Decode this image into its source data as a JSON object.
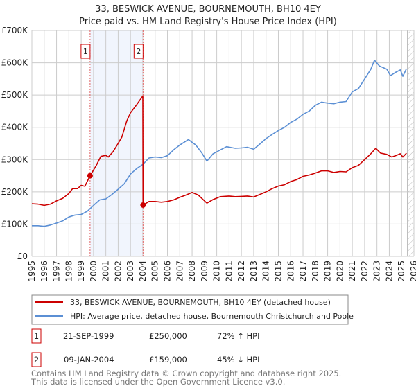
{
  "chart_data": {
    "type": "line",
    "title": "33, BESWICK AVENUE, BOURNEMOUTH, BH10 4EY",
    "subtitle": "Price paid vs. HM Land Registry's House Price Index (HPI)",
    "xlabel": "",
    "ylabel": "",
    "xlim": [
      1995,
      2026
    ],
    "ylim": [
      0,
      700000
    ],
    "y_ticks": [
      {
        "v": 0,
        "label": "£0"
      },
      {
        "v": 100000,
        "label": "£100K"
      },
      {
        "v": 200000,
        "label": "£200K"
      },
      {
        "v": 300000,
        "label": "£300K"
      },
      {
        "v": 400000,
        "label": "£400K"
      },
      {
        "v": 500000,
        "label": "£500K"
      },
      {
        "v": 600000,
        "label": "£600K"
      },
      {
        "v": 700000,
        "label": "£700K"
      }
    ],
    "x_ticks": [
      "1995",
      "1996",
      "1997",
      "1998",
      "1999",
      "2000",
      "2001",
      "2002",
      "2003",
      "2004",
      "2005",
      "2006",
      "2007",
      "2008",
      "2009",
      "2010",
      "2011",
      "2012",
      "2013",
      "2014",
      "2015",
      "2016",
      "2017",
      "2018",
      "2019",
      "2020",
      "2021",
      "2022",
      "2023",
      "2024",
      "2025",
      "2026"
    ],
    "grid": true,
    "shaded_period": [
      1999.72,
      2004.02
    ],
    "forecast_hatch_from": 2025.5,
    "series": [
      {
        "name": "33, BESWICK AVENUE, BOURNEMOUTH, BH10 4EY (detached house)",
        "color": "#cc0000",
        "points": [
          [
            1995,
            163000
          ],
          [
            1995.5,
            162000
          ],
          [
            1996,
            158000
          ],
          [
            1996.5,
            162000
          ],
          [
            1997,
            172000
          ],
          [
            1997.5,
            180000
          ],
          [
            1998,
            195000
          ],
          [
            1998.3,
            210000
          ],
          [
            1998.7,
            210000
          ],
          [
            1999,
            220000
          ],
          [
            1999.3,
            217000
          ],
          [
            1999.72,
            250000
          ],
          [
            2000.2,
            280000
          ],
          [
            2000.6,
            310000
          ],
          [
            2001,
            313000
          ],
          [
            2001.2,
            308000
          ],
          [
            2001.6,
            325000
          ],
          [
            2002,
            350000
          ],
          [
            2002.3,
            370000
          ],
          [
            2002.7,
            420000
          ],
          [
            2003,
            445000
          ],
          [
            2003.5,
            470000
          ],
          [
            2004.0,
            497000
          ],
          [
            2004.02,
            159000
          ],
          [
            2004.5,
            170000
          ],
          [
            2005,
            170000
          ],
          [
            2005.5,
            168000
          ],
          [
            2006,
            170000
          ],
          [
            2006.5,
            175000
          ],
          [
            2007,
            183000
          ],
          [
            2007.5,
            190000
          ],
          [
            2008,
            198000
          ],
          [
            2008.5,
            190000
          ],
          [
            2009.2,
            165000
          ],
          [
            2009.7,
            176000
          ],
          [
            2010.3,
            185000
          ],
          [
            2011,
            187000
          ],
          [
            2011.5,
            185000
          ],
          [
            2012,
            186000
          ],
          [
            2012.5,
            187000
          ],
          [
            2013,
            184000
          ],
          [
            2013.5,
            192000
          ],
          [
            2014,
            200000
          ],
          [
            2014.5,
            210000
          ],
          [
            2015,
            218000
          ],
          [
            2015.5,
            222000
          ],
          [
            2016,
            232000
          ],
          [
            2016.5,
            238000
          ],
          [
            2017,
            248000
          ],
          [
            2017.5,
            252000
          ],
          [
            2018,
            258000
          ],
          [
            2018.5,
            265000
          ],
          [
            2019,
            265000
          ],
          [
            2019.5,
            260000
          ],
          [
            2020,
            263000
          ],
          [
            2020.5,
            262000
          ],
          [
            2021,
            275000
          ],
          [
            2021.5,
            282000
          ],
          [
            2022,
            300000
          ],
          [
            2022.5,
            318000
          ],
          [
            2022.9,
            335000
          ],
          [
            2023.3,
            320000
          ],
          [
            2023.8,
            316000
          ],
          [
            2024.2,
            308000
          ],
          [
            2024.5,
            312000
          ],
          [
            2024.9,
            318000
          ],
          [
            2025.1,
            308000
          ],
          [
            2025.4,
            320000
          ]
        ]
      },
      {
        "name": "HPI: Average price, detached house, Bournemouth Christchurch and Poole",
        "color": "#5b8fd4",
        "points": [
          [
            1995,
            95000
          ],
          [
            1995.5,
            95000
          ],
          [
            1996,
            93000
          ],
          [
            1996.5,
            97000
          ],
          [
            1997,
            103000
          ],
          [
            1997.5,
            110000
          ],
          [
            1998,
            122000
          ],
          [
            1998.5,
            128000
          ],
          [
            1999,
            130000
          ],
          [
            1999.5,
            140000
          ],
          [
            2000,
            158000
          ],
          [
            2000.5,
            175000
          ],
          [
            2001,
            178000
          ],
          [
            2001.5,
            192000
          ],
          [
            2002,
            208000
          ],
          [
            2002.5,
            225000
          ],
          [
            2003,
            255000
          ],
          [
            2003.5,
            272000
          ],
          [
            2004,
            285000
          ],
          [
            2004.5,
            305000
          ],
          [
            2005,
            308000
          ],
          [
            2005.5,
            306000
          ],
          [
            2006,
            312000
          ],
          [
            2006.5,
            330000
          ],
          [
            2007,
            345000
          ],
          [
            2007.7,
            362000
          ],
          [
            2008.3,
            345000
          ],
          [
            2008.8,
            320000
          ],
          [
            2009.2,
            295000
          ],
          [
            2009.7,
            318000
          ],
          [
            2010.3,
            330000
          ],
          [
            2010.8,
            340000
          ],
          [
            2011.5,
            335000
          ],
          [
            2012,
            336000
          ],
          [
            2012.5,
            338000
          ],
          [
            2013,
            332000
          ],
          [
            2013.5,
            348000
          ],
          [
            2014,
            365000
          ],
          [
            2014.5,
            378000
          ],
          [
            2015,
            390000
          ],
          [
            2015.5,
            400000
          ],
          [
            2016,
            415000
          ],
          [
            2016.5,
            425000
          ],
          [
            2017,
            440000
          ],
          [
            2017.5,
            450000
          ],
          [
            2018,
            468000
          ],
          [
            2018.5,
            478000
          ],
          [
            2019,
            475000
          ],
          [
            2019.5,
            473000
          ],
          [
            2020,
            478000
          ],
          [
            2020.5,
            480000
          ],
          [
            2021,
            510000
          ],
          [
            2021.5,
            520000
          ],
          [
            2022,
            550000
          ],
          [
            2022.5,
            580000
          ],
          [
            2022.8,
            608000
          ],
          [
            2023.2,
            590000
          ],
          [
            2023.8,
            580000
          ],
          [
            2024.1,
            560000
          ],
          [
            2024.5,
            570000
          ],
          [
            2024.9,
            578000
          ],
          [
            2025.1,
            558000
          ],
          [
            2025.4,
            582000
          ]
        ]
      }
    ],
    "sales": [
      {
        "id": "1",
        "year": 1999.72,
        "value": 250000
      },
      {
        "id": "2",
        "year": 2004.02,
        "value": 159000
      }
    ]
  },
  "legend": {
    "items": [
      {
        "label": "33, BESWICK AVENUE, BOURNEMOUTH, BH10 4EY (detached house)",
        "color": "#cc0000"
      },
      {
        "label": "HPI: Average price, detached house, Bournemouth Christchurch and Poole",
        "color": "#5b8fd4"
      }
    ]
  },
  "transactions": [
    {
      "id": "1",
      "date": "21-SEP-1999",
      "price": "£250,000",
      "hpi": "72% ↑ HPI"
    },
    {
      "id": "2",
      "date": "09-JAN-2004",
      "price": "£159,000",
      "hpi": "45% ↓ HPI"
    }
  ],
  "footer": {
    "line1": "Contains HM Land Registry data © Crown copyright and database right 2025.",
    "line2": "This data is licensed under the Open Government Licence v3.0."
  }
}
